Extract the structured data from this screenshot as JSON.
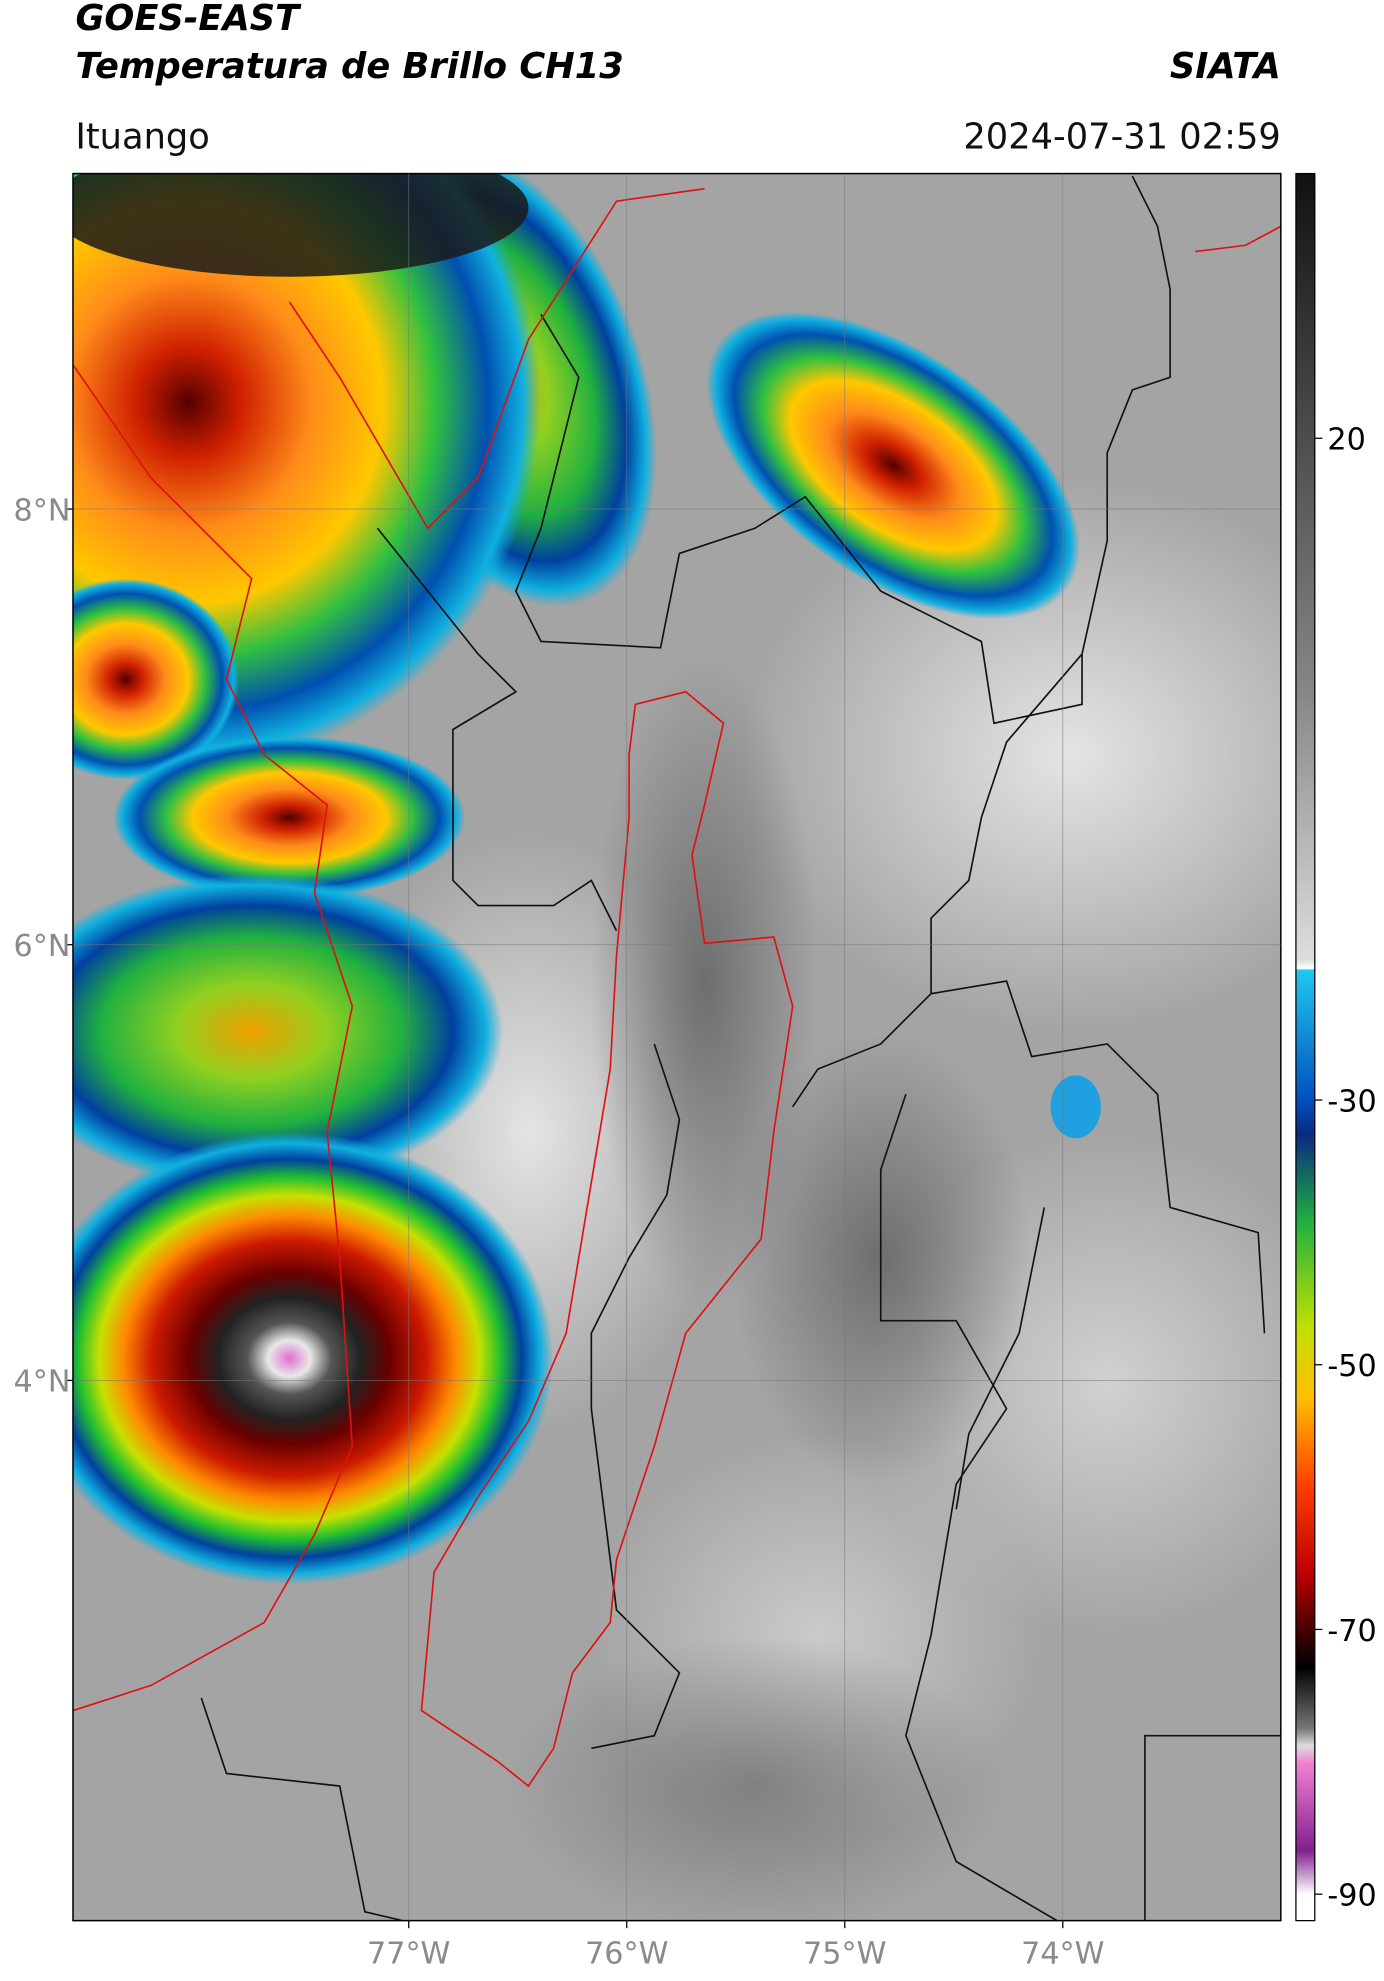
{
  "header": {
    "title": "GOES-EAST",
    "subtitle": "Temperatura de Brillo CH13",
    "source": "SIATA",
    "location": "Ituango",
    "timestamp": "2024-07-31 02:59"
  },
  "map": {
    "xlim": [
      -78.54,
      -73.0
    ],
    "ylim": [
      1.52,
      9.54
    ],
    "xticks": [
      {
        "value": -77,
        "label": "77°W"
      },
      {
        "value": -76,
        "label": "76°W"
      },
      {
        "value": -75,
        "label": "75°W"
      },
      {
        "value": -74,
        "label": "74°W"
      }
    ],
    "yticks": [
      {
        "value": 8,
        "label": "8°N"
      },
      {
        "value": 6,
        "label": "6°N"
      },
      {
        "value": 4,
        "label": "4°N"
      }
    ],
    "grid": true
  },
  "colorbar": {
    "clim": [
      -92,
      40
    ],
    "ticks": [
      20,
      -30,
      -50,
      -70,
      -90
    ]
  }
}
